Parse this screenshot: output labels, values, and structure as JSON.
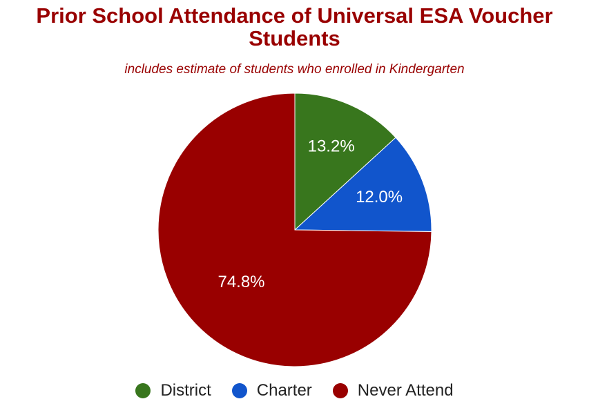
{
  "chart_data": {
    "type": "pie",
    "title": "Prior School Attendance of Universal ESA Voucher Students",
    "subtitle": "includes estimate of students who enrolled in Kindergarten",
    "categories": [
      "District",
      "Charter",
      "Never Attend"
    ],
    "values": [
      13.2,
      12.0,
      74.8
    ],
    "labels": [
      "13.2%",
      "12.0%",
      "74.8%"
    ],
    "colors": [
      "#38761d",
      "#1155cc",
      "#990000"
    ],
    "legend": "bottom",
    "start": "top-clockwise"
  }
}
